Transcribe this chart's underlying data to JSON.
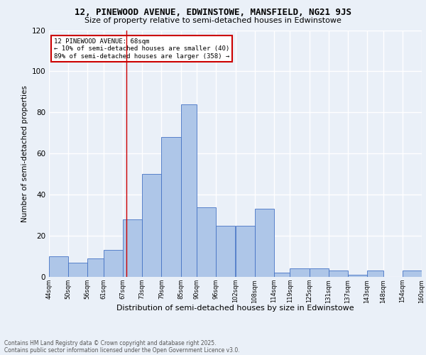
{
  "title1": "12, PINEWOOD AVENUE, EDWINSTOWE, MANSFIELD, NG21 9JS",
  "title2": "Size of property relative to semi-detached houses in Edwinstowe",
  "xlabel": "Distribution of semi-detached houses by size in Edwinstowe",
  "ylabel": "Number of semi-detached properties",
  "footnote1": "Contains HM Land Registry data © Crown copyright and database right 2025.",
  "footnote2": "Contains public sector information licensed under the Open Government Licence v3.0.",
  "annotation_title": "12 PINEWOOD AVENUE: 68sqm",
  "annotation_line1": "← 10% of semi-detached houses are smaller (40)",
  "annotation_line2": "89% of semi-detached houses are larger (358) →",
  "bar_edges": [
    44,
    50,
    56,
    61,
    67,
    73,
    79,
    85,
    90,
    96,
    102,
    108,
    114,
    119,
    125,
    131,
    137,
    143,
    148,
    154,
    160
  ],
  "bar_heights": [
    10,
    7,
    9,
    13,
    28,
    50,
    68,
    84,
    34,
    25,
    25,
    33,
    2,
    4,
    4,
    3,
    1,
    3,
    0,
    3
  ],
  "bar_color": "#aec6e8",
  "bar_edge_color": "#4472c4",
  "vline_color": "#cc0000",
  "vline_x": 68,
  "ylim": [
    0,
    120
  ],
  "yticks": [
    0,
    20,
    40,
    60,
    80,
    100,
    120
  ],
  "tick_labels": [
    "44sqm",
    "50sqm",
    "56sqm",
    "61sqm",
    "67sqm",
    "73sqm",
    "79sqm",
    "85sqm",
    "90sqm",
    "96sqm",
    "102sqm",
    "108sqm",
    "114sqm",
    "119sqm",
    "125sqm",
    "131sqm",
    "137sqm",
    "143sqm",
    "148sqm",
    "154sqm",
    "160sqm"
  ],
  "background_color": "#eaf0f8",
  "grid_color": "#ffffff",
  "annotation_box_color": "#ffffff",
  "annotation_box_edge": "#cc0000",
  "title1_fontsize": 9,
  "title2_fontsize": 8,
  "ylabel_fontsize": 7.5,
  "xlabel_fontsize": 8,
  "tick_fontsize": 6,
  "footnote_fontsize": 5.5
}
